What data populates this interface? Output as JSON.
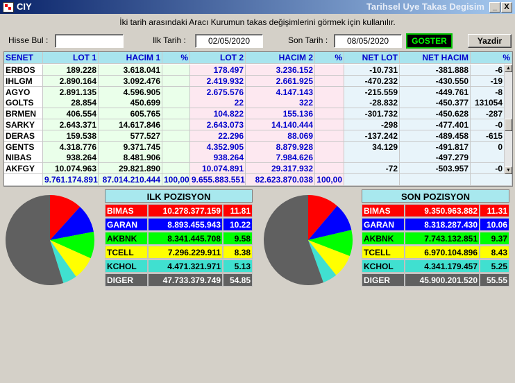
{
  "window": {
    "app_title": "CIY",
    "title": "Tarihsel Uye Takas Degisim",
    "min": "_",
    "close": "X"
  },
  "instruction": "İki tarih arasındaki  Aracı Kurumun takas değişimlerini görmek için kullanılır.",
  "controls": {
    "hisse_label": "Hisse Bul :",
    "hisse_value": "",
    "ilk_label": "Ilk Tarih :",
    "ilk_value": "02/05/2020",
    "son_label": "Son Tarih :",
    "son_value": "08/05/2020",
    "goster": "GOSTER",
    "yazdir": "Yazdir"
  },
  "table": {
    "headers": [
      "SENET",
      "LOT 1",
      "HACIM 1",
      "%",
      "LOT 2",
      "HACIM 2",
      "%",
      "NET LOT",
      "NET HACIM",
      "%"
    ],
    "rows": [
      [
        "ERBOS",
        "189.228",
        "3.618.041",
        "",
        "178.497",
        "3.236.152",
        "",
        "-10.731",
        "-381.888",
        "-6"
      ],
      [
        "IHLGM",
        "2.890.164",
        "3.092.476",
        "",
        "2.419.932",
        "2.661.925",
        "",
        "-470.232",
        "-430.550",
        "-19"
      ],
      [
        "AGYO",
        "2.891.135",
        "4.596.905",
        "",
        "2.675.576",
        "4.147.143",
        "",
        "-215.559",
        "-449.761",
        "-8"
      ],
      [
        "GOLTS",
        "28.854",
        "450.699",
        "",
        "22",
        "322",
        "",
        "-28.832",
        "-450.377",
        "131054"
      ],
      [
        "BRMEN",
        "406.554",
        "605.765",
        "",
        "104.822",
        "155.136",
        "",
        "-301.732",
        "-450.628",
        "-287"
      ],
      [
        "SARKY",
        "2.643.371",
        "14.617.846",
        "",
        "2.643.073",
        "14.140.444",
        "",
        "-298",
        "-477.401",
        "-0"
      ],
      [
        "DERAS",
        "159.538",
        "577.527",
        "",
        "22.296",
        "88.069",
        "",
        "-137.242",
        "-489.458",
        "-615"
      ],
      [
        "GENTS",
        "4.318.776",
        "9.371.745",
        "",
        "4.352.905",
        "8.879.928",
        "",
        "34.129",
        "-491.817",
        "0"
      ],
      [
        "NIBAS",
        "938.264",
        "8.481.906",
        "",
        "938.264",
        "7.984.626",
        "",
        "",
        "-497.279",
        ""
      ],
      [
        "AKFGY",
        "10.074.963",
        "29.821.890",
        "",
        "10.074.891",
        "29.317.932",
        "",
        "-72",
        "-503.957",
        "-0"
      ]
    ],
    "totals": [
      "",
      "9.761.174.891",
      "87.014.210.444",
      "100,00",
      "9.655.883.551",
      "82.623.870.038",
      "100,00",
      "",
      "",
      ""
    ]
  },
  "ilk_pozisyon": {
    "title": "ILK POZISYON",
    "rows": [
      {
        "name": "BIMAS",
        "value": "10.278.377.159",
        "pct": "11.81",
        "color": "#ff0000",
        "text": "#ffffff",
        "share": 11.81
      },
      {
        "name": "GARAN",
        "value": "8.893.455.943",
        "pct": "10.22",
        "color": "#0000ff",
        "text": "#ffffff",
        "share": 10.22
      },
      {
        "name": "AKBNK",
        "value": "8.341.445.708",
        "pct": "9.58",
        "color": "#00ff00",
        "text": "#000000",
        "share": 9.58
      },
      {
        "name": "TCELL",
        "value": "7.296.229.911",
        "pct": "8.38",
        "color": "#ffff00",
        "text": "#000000",
        "share": 8.38
      },
      {
        "name": "KCHOL",
        "value": "4.471.321.971",
        "pct": "5.13",
        "color": "#40e0d0",
        "text": "#000000",
        "share": 5.13
      },
      {
        "name": "DIGER",
        "value": "47.733.379.749",
        "pct": "54.85",
        "color": "#606060",
        "text": "#ffffff",
        "share": 54.85
      }
    ]
  },
  "son_pozisyon": {
    "title": "SON POZISYON",
    "rows": [
      {
        "name": "BIMAS",
        "value": "9.350.963.882",
        "pct": "11.31",
        "color": "#ff0000",
        "text": "#ffffff",
        "share": 11.31
      },
      {
        "name": "GARAN",
        "value": "8.318.287.430",
        "pct": "10.06",
        "color": "#0000ff",
        "text": "#ffffff",
        "share": 10.06
      },
      {
        "name": "AKBNK",
        "value": "7.743.132.851",
        "pct": "9.37",
        "color": "#00ff00",
        "text": "#000000",
        "share": 9.37
      },
      {
        "name": "TCELL",
        "value": "6.970.104.896",
        "pct": "8.43",
        "color": "#ffff00",
        "text": "#000000",
        "share": 8.43
      },
      {
        "name": "KCHOL",
        "value": "4.341.179.457",
        "pct": "5.25",
        "color": "#40e0d0",
        "text": "#000000",
        "share": 5.25
      },
      {
        "name": "DIGER",
        "value": "45.900.201.520",
        "pct": "55.55",
        "color": "#606060",
        "text": "#ffffff",
        "share": 55.55
      }
    ]
  }
}
